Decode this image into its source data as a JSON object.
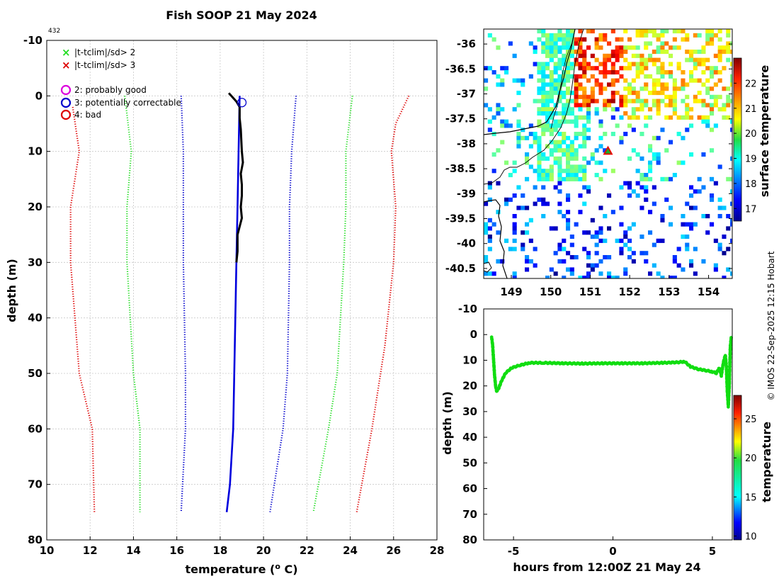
{
  "chart_data": [
    {
      "type": "line",
      "title": "Fish SOOP 21 May 2024",
      "profile_id": "432",
      "xlabel": "temperature (",
      "xlabel_sup": "o",
      "xlabel_end": " C)",
      "ylabel": "depth (m)",
      "xlim": [
        10,
        28
      ],
      "ylim": [
        -10,
        80
      ],
      "xticks": [
        "10",
        "12",
        "14",
        "16",
        "18",
        "20",
        "22",
        "24",
        "26",
        "28"
      ],
      "yticks": [
        "-10",
        "0",
        "10",
        "20",
        "30",
        "40",
        "50",
        "60",
        "70",
        "80"
      ],
      "legend_flags": [
        {
          "marker": "×",
          "color": "#22dd22",
          "label": "|t-tclim|/sd> 2"
        },
        {
          "marker": "×",
          "color": "#dd0000",
          "label": "|t-tclim|/sd> 3"
        }
      ],
      "legend_qc": [
        {
          "color": "#dd00dd",
          "label": "2: probably good"
        },
        {
          "color": "#0000cc",
          "label": "3: potentially correctable"
        },
        {
          "color": "#dd0000",
          "label": "4: bad"
        }
      ],
      "series": [
        {
          "name": "clim -3sd",
          "color": "#dd0000",
          "style": "dotted",
          "points": [
            [
              11.2,
              2
            ],
            [
              11.5,
              10
            ],
            [
              11.1,
              20
            ],
            [
              11.1,
              30
            ],
            [
              11.5,
              50
            ],
            [
              12.1,
              60
            ],
            [
              12.2,
              75
            ]
          ]
        },
        {
          "name": "clim -2sd",
          "color": "#22dd22",
          "style": "dotted",
          "points": [
            [
              13.6,
              0
            ],
            [
              13.9,
              10
            ],
            [
              13.7,
              20
            ],
            [
              13.7,
              30
            ],
            [
              14.0,
              50
            ],
            [
              14.3,
              60
            ],
            [
              14.3,
              75
            ]
          ]
        },
        {
          "name": "clim -1sd",
          "color": "#0000cc",
          "style": "dotted",
          "points": [
            [
              16.2,
              0
            ],
            [
              16.3,
              10
            ],
            [
              16.3,
              20
            ],
            [
              16.3,
              30
            ],
            [
              16.4,
              50
            ],
            [
              16.4,
              60
            ],
            [
              16.2,
              75
            ]
          ]
        },
        {
          "name": "clim +1sd",
          "color": "#0000cc",
          "style": "dotted",
          "points": [
            [
              21.5,
              0
            ],
            [
              21.3,
              10
            ],
            [
              21.2,
              20
            ],
            [
              21.2,
              30
            ],
            [
              21.1,
              50
            ],
            [
              20.9,
              60
            ],
            [
              20.3,
              75
            ]
          ]
        },
        {
          "name": "clim +2sd",
          "color": "#22dd22",
          "style": "dotted",
          "points": [
            [
              24.1,
              0
            ],
            [
              23.8,
              10
            ],
            [
              23.8,
              20
            ],
            [
              23.7,
              30
            ],
            [
              23.4,
              50
            ],
            [
              23.0,
              60
            ],
            [
              22.3,
              75
            ]
          ]
        },
        {
          "name": "clim +3sd",
          "color": "#dd0000",
          "style": "dotted",
          "points": [
            [
              26.7,
              0
            ],
            [
              26.1,
              5
            ],
            [
              25.9,
              10
            ],
            [
              26.1,
              20
            ],
            [
              26.0,
              30
            ],
            [
              25.6,
              45
            ],
            [
              25.0,
              60
            ],
            [
              24.3,
              75
            ]
          ]
        },
        {
          "name": "profile qc",
          "color": "#0000dd",
          "style": "solid",
          "points": [
            [
              18.9,
              0
            ],
            [
              18.85,
              10
            ],
            [
              18.8,
              20
            ],
            [
              18.75,
              30
            ],
            [
              18.7,
              40
            ],
            [
              18.65,
              50
            ],
            [
              18.6,
              60
            ],
            [
              18.45,
              70
            ],
            [
              18.3,
              75
            ]
          ]
        },
        {
          "name": "profile raw",
          "color": "#000000",
          "style": "solid",
          "points": [
            [
              18.4,
              -0.5
            ],
            [
              18.75,
              1
            ],
            [
              18.9,
              2
            ],
            [
              18.9,
              4
            ],
            [
              18.95,
              6
            ],
            [
              19.0,
              10
            ],
            [
              19.05,
              12
            ],
            [
              18.95,
              14
            ],
            [
              19.0,
              16
            ],
            [
              19.0,
              18
            ],
            [
              18.95,
              20
            ],
            [
              19.0,
              22
            ],
            [
              18.8,
              25
            ],
            [
              18.8,
              28
            ],
            [
              18.75,
              30
            ]
          ]
        }
      ],
      "qc_marker": {
        "x": 19.0,
        "y": 1.2,
        "color": "#0000cc"
      }
    },
    {
      "type": "heatmap",
      "colorbar_label": "surface temperature",
      "colorbar_ticks": [
        "17",
        "18",
        "19",
        "20",
        "21",
        "22"
      ],
      "colorbar_range": [
        16.5,
        23
      ],
      "xlim": [
        148.3,
        154.6
      ],
      "ylim": [
        -40.7,
        -35.7
      ],
      "xticks": [
        "149",
        "150",
        "151",
        "152",
        "153",
        "154"
      ],
      "yticks": [
        "-36",
        "-36.5",
        "-37",
        "-37.5",
        "-38",
        "-38.5",
        "-39",
        "-39.5",
        "-40",
        "-40.5"
      ],
      "marker": {
        "lon": 151.45,
        "lat": -38.15,
        "color": "#ee0000",
        "shape": "triangle"
      }
    },
    {
      "type": "scatter",
      "xlabel": "hours from 12:00Z 21 May 24",
      "ylabel": "depth (m)",
      "xlim": [
        -6.5,
        6.0
      ],
      "ylim": [
        -10,
        80
      ],
      "xticks": [
        "-5",
        "0",
        "5"
      ],
      "yticks": [
        "-10",
        "0",
        "10",
        "20",
        "30",
        "40",
        "50",
        "60",
        "70",
        "80"
      ],
      "colorbar_label": "temperature",
      "colorbar_ticks": [
        "10",
        "15",
        "20",
        "25"
      ],
      "colorbar_range": [
        9.5,
        28
      ],
      "series": [
        {
          "name": "track",
          "color": "#11dd11",
          "points": [
            [
              -6.1,
              1
            ],
            [
              -6.05,
              4
            ],
            [
              -6.0,
              10
            ],
            [
              -5.95,
              16
            ],
            [
              -5.9,
              20
            ],
            [
              -5.85,
              22
            ],
            [
              -5.75,
              21
            ],
            [
              -5.6,
              18
            ],
            [
              -5.4,
              15
            ],
            [
              -5.1,
              13
            ],
            [
              -4.7,
              12
            ],
            [
              -4.2,
              11
            ],
            [
              -3.5,
              11
            ],
            [
              -2.5,
              11.2
            ],
            [
              -1.5,
              11.3
            ],
            [
              -0.5,
              11.2
            ],
            [
              0.5,
              11.2
            ],
            [
              1.5,
              11.2
            ],
            [
              2.5,
              11
            ],
            [
              3.3,
              10.8
            ],
            [
              3.6,
              10.5
            ],
            [
              3.9,
              12.5
            ],
            [
              4.3,
              13.5
            ],
            [
              4.7,
              14
            ],
            [
              5.0,
              14.5
            ],
            [
              5.2,
              15
            ],
            [
              5.35,
              13
            ],
            [
              5.45,
              16
            ],
            [
              5.55,
              11
            ],
            [
              5.65,
              8
            ],
            [
              5.7,
              12
            ],
            [
              5.75,
              22
            ],
            [
              5.8,
              28
            ],
            [
              5.85,
              20
            ],
            [
              5.9,
              5
            ],
            [
              5.95,
              1
            ]
          ]
        }
      ]
    }
  ],
  "watermark": "© IMOS 22-Sep-2025 12:15 Hobart"
}
